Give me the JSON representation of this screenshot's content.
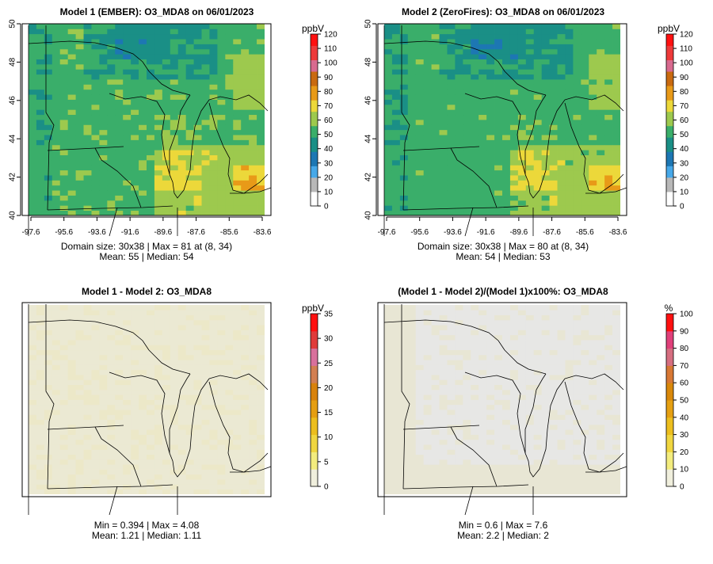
{
  "chart_data": [
    {
      "type": "heatmap",
      "title": "Model 1 (EMBER): O3_MDA8 on 06/01/2023",
      "variable": "O3_MDA8",
      "date": "06/01/2023",
      "x_ticks": [
        "-97.6",
        "-95.6",
        "-93.6",
        "-91.6",
        "-89.6",
        "-87.6",
        "-85.6",
        "-83.6"
      ],
      "y_ticks": [
        "40",
        "42",
        "44",
        "46",
        "48",
        "50"
      ],
      "xlim": [
        -97.6,
        -83.6
      ],
      "ylim": [
        40,
        50
      ],
      "colorbar": {
        "label": "ppbV",
        "ticks": [
          "0",
          "10",
          "20",
          "30",
          "40",
          "50",
          "60",
          "70",
          "80",
          "90",
          "100",
          "110",
          "120"
        ],
        "range": [
          0,
          120
        ]
      },
      "stats_line1": "Domain size: 30x38 | Max = 81 at (8, 34)",
      "stats_line2": "Mean: 55 |  Median: 54",
      "domain_size": "30x38",
      "max": 81,
      "max_location": "(8, 34)",
      "mean": 55,
      "median": 54
    },
    {
      "type": "heatmap",
      "title": "Model 2 (ZeroFires): O3_MDA8 on 06/01/2023",
      "variable": "O3_MDA8",
      "date": "06/01/2023",
      "x_ticks": [
        "-97.6",
        "-95.6",
        "-93.6",
        "-91.6",
        "-89.6",
        "-87.6",
        "-85.6",
        "-83.6"
      ],
      "y_ticks": [
        "40",
        "42",
        "44",
        "46",
        "48",
        "50"
      ],
      "xlim": [
        -97.6,
        -83.6
      ],
      "ylim": [
        40,
        50
      ],
      "colorbar": {
        "label": "ppbV",
        "ticks": [
          "0",
          "10",
          "20",
          "30",
          "40",
          "50",
          "60",
          "70",
          "80",
          "90",
          "100",
          "110",
          "120"
        ],
        "range": [
          0,
          120
        ]
      },
      "stats_line1": "Domain size: 30x38 | Max = 80 at (8, 34)",
      "stats_line2": "Mean: 54 |  Median: 53",
      "domain_size": "30x38",
      "max": 80,
      "max_location": "(8, 34)",
      "mean": 54,
      "median": 53
    },
    {
      "type": "heatmap",
      "title": "Model 1 - Model 2: O3_MDA8",
      "variable": "O3_MDA8",
      "colorbar": {
        "label": "ppbV",
        "ticks": [
          "0",
          "5",
          "10",
          "15",
          "20",
          "25",
          "30",
          "35"
        ],
        "range": [
          0,
          35
        ]
      },
      "stats_line1": "Min = 0.394 | Max = 4.08",
      "stats_line2": "Mean: 1.21 |  Median: 1.11",
      "min": 0.394,
      "max": 4.08,
      "mean": 1.21,
      "median": 1.11
    },
    {
      "type": "heatmap",
      "title": "(Model 1 - Model 2)/(Model 1)x100%: O3_MDA8",
      "variable": "O3_MDA8",
      "colorbar": {
        "label": "%",
        "ticks": [
          "0",
          "10",
          "20",
          "30",
          "40",
          "50",
          "60",
          "70",
          "80",
          "90",
          "100"
        ],
        "range": [
          0,
          100
        ]
      },
      "stats_line1": "Min = 0.6 | Max = 7.6",
      "stats_line2": "Mean: 2.2 |  Median: 2",
      "min": 0.6,
      "max": 7.6,
      "mean": 2.2,
      "median": 2
    }
  ],
  "colors": {
    "abs_palette": [
      "#ffffff",
      "#b8b8b8",
      "#47a8e8",
      "#1d77b3",
      "#1a8f86",
      "#3aae6a",
      "#9dc94e",
      "#ecd83a",
      "#e89a18",
      "#c96a10",
      "#d86a8f",
      "#ee3a3a",
      "#ff1010"
    ],
    "small_palette": [
      "#f0efdd",
      "#f3ec7e",
      "#f0d640",
      "#ecbe1e",
      "#e59e12",
      "#d8820c",
      "#d27f52",
      "#d8709c",
      "#e03a3a",
      "#ff1010"
    ],
    "pct_palette": [
      "#f0efdd",
      "#f3ec7e",
      "#f0d640",
      "#ecbe1e",
      "#e5a012",
      "#d9880a",
      "#d87834",
      "#d66e80",
      "#e0407a",
      "#ff1010"
    ],
    "diff_fill": "#ebe9d3",
    "pct_fill": "#e7e7e5"
  }
}
